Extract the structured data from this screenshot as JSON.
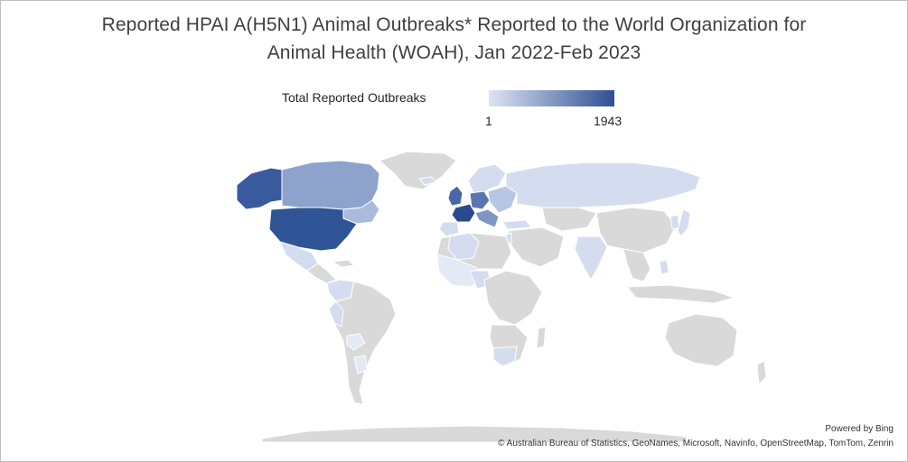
{
  "title_line1": "Reported HPAI A(H5N1) Animal Outbreaks* Reported to the World Organization for",
  "title_line2": "Animal Health (WOAH), Jan 2022-Feb 2023",
  "legend": {
    "title": "Total Reported Outbreaks",
    "min_label": "1",
    "max_label": "1943",
    "min_color": "#dce4f3",
    "max_color": "#2f4f93"
  },
  "colors": {
    "no_data": "#d9d9d9",
    "border": "#ffffff",
    "usa": "#2f5597",
    "france": "#2b4a8c",
    "alaska": "#3a5a9e",
    "canada": "#8ea3cc",
    "canada_east": "#a9badc",
    "uk": "#4a67a8",
    "germany": "#5a76b0",
    "europe_mid": "#7f95c4",
    "europe_light": "#b7c6e3",
    "light": "#d4ddef",
    "pale": "#e3e9f5"
  },
  "attribution": {
    "powered_by": "Powered by Bing",
    "sources": "© Australian Bureau of Statistics, GeoNames, Microsoft, Navinfo, OpenStreetMap, TomTom, Zenrin"
  }
}
